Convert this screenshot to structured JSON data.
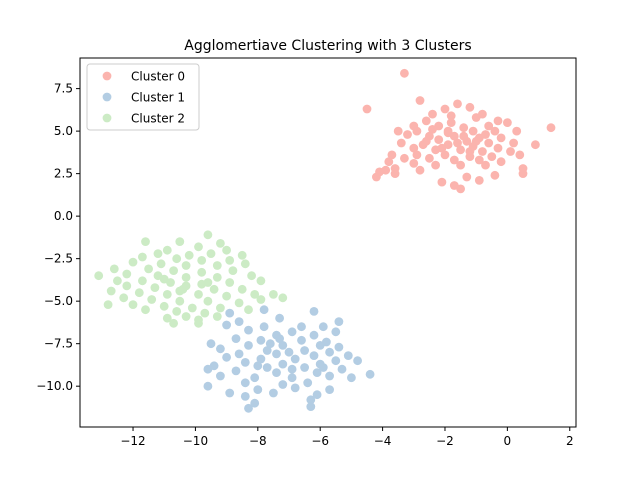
{
  "chart_data": {
    "type": "scatter",
    "title": "Agglomertiave Clustering with 3 Clusters",
    "xlabel": "",
    "ylabel": "",
    "xlim": [
      -13.7,
      2.2
    ],
    "ylim": [
      -12.4,
      9.3
    ],
    "xticks": [
      -12,
      -10,
      -8,
      -6,
      -4,
      -2,
      0,
      2
    ],
    "xtick_labels": [
      "−12",
      "−10",
      "−8",
      "−6",
      "−4",
      "−2",
      "0",
      "2"
    ],
    "yticks": [
      -10.0,
      -7.5,
      -5.0,
      -2.5,
      0.0,
      2.5,
      5.0,
      7.5
    ],
    "ytick_labels": [
      "−10.0",
      "−7.5",
      "−5.0",
      "−2.5",
      "0.0",
      "2.5",
      "5.0",
      "7.5"
    ],
    "grid": false,
    "legend_position": "upper-left",
    "series": [
      {
        "name": "Cluster 0",
        "color": "#fbb4ae",
        "points": [
          [
            -3.3,
            8.4
          ],
          [
            -2.8,
            6.8
          ],
          [
            -1.6,
            6.6
          ],
          [
            -1.2,
            6.4
          ],
          [
            -4.5,
            6.3
          ],
          [
            -2.0,
            6.3
          ],
          [
            -0.8,
            6.0
          ],
          [
            -2.4,
            6.0
          ],
          [
            -1.8,
            5.9
          ],
          [
            -1.0,
            5.8
          ],
          [
            -0.3,
            5.6
          ],
          [
            0.0,
            5.5
          ],
          [
            -2.6,
            5.6
          ],
          [
            -3.0,
            5.3
          ],
          [
            -2.2,
            5.3
          ],
          [
            -1.4,
            5.2
          ],
          [
            -0.6,
            5.3
          ],
          [
            1.4,
            5.2
          ],
          [
            -3.5,
            5.0
          ],
          [
            -2.9,
            5.0
          ],
          [
            -1.9,
            5.0
          ],
          [
            -1.1,
            5.0
          ],
          [
            -0.4,
            5.0
          ],
          [
            0.3,
            5.0
          ],
          [
            -3.2,
            4.8
          ],
          [
            -2.5,
            4.7
          ],
          [
            -1.7,
            4.7
          ],
          [
            -0.9,
            4.6
          ],
          [
            -0.2,
            4.6
          ],
          [
            -2.2,
            4.5
          ],
          [
            -1.3,
            4.4
          ],
          [
            -0.6,
            4.3
          ],
          [
            0.2,
            4.3
          ],
          [
            -3.4,
            4.3
          ],
          [
            -2.7,
            4.2
          ],
          [
            -1.9,
            4.2
          ],
          [
            -1.1,
            4.1
          ],
          [
            -0.3,
            4.0
          ],
          [
            0.9,
            4.2
          ],
          [
            -3.0,
            4.0
          ],
          [
            -2.3,
            3.9
          ],
          [
            -1.5,
            3.9
          ],
          [
            -0.8,
            3.8
          ],
          [
            0.1,
            3.8
          ],
          [
            -3.7,
            3.6
          ],
          [
            -2.9,
            3.6
          ],
          [
            -2.0,
            3.6
          ],
          [
            -1.2,
            3.5
          ],
          [
            -0.5,
            3.5
          ],
          [
            0.4,
            3.6
          ],
          [
            -3.3,
            3.4
          ],
          [
            -2.5,
            3.4
          ],
          [
            -1.7,
            3.3
          ],
          [
            -0.9,
            3.3
          ],
          [
            -0.2,
            3.2
          ],
          [
            -3.8,
            3.2
          ],
          [
            -3.0,
            3.1
          ],
          [
            -2.3,
            3.0
          ],
          [
            -1.5,
            3.0
          ],
          [
            -0.7,
            3.0
          ],
          [
            0.5,
            2.8
          ],
          [
            -3.6,
            2.8
          ],
          [
            -3.9,
            2.7
          ],
          [
            -2.8,
            2.7
          ],
          [
            -4.1,
            2.6
          ],
          [
            0.5,
            2.5
          ],
          [
            -3.6,
            2.5
          ],
          [
            -4.2,
            2.3
          ],
          [
            -1.3,
            2.3
          ],
          [
            -2.1,
            2.0
          ],
          [
            -0.4,
            2.4
          ],
          [
            -1.7,
            1.8
          ],
          [
            -0.9,
            2.1
          ],
          [
            -1.5,
            1.6
          ],
          [
            -1.9,
            4.9
          ],
          [
            -1.4,
            4.7
          ],
          [
            -1.6,
            4.3
          ],
          [
            -2.1,
            4.0
          ],
          [
            -1.0,
            4.4
          ],
          [
            -1.8,
            5.5
          ],
          [
            -2.4,
            5.1
          ],
          [
            -1.2,
            3.8
          ],
          [
            -2.6,
            4.4
          ],
          [
            -0.7,
            4.8
          ]
        ]
      },
      {
        "name": "Cluster 1",
        "color": "#b3cde3",
        "points": [
          [
            -7.8,
            -5.5
          ],
          [
            -6.2,
            -5.6
          ],
          [
            -8.9,
            -5.7
          ],
          [
            -5.4,
            -6.2
          ],
          [
            -8.6,
            -6.2
          ],
          [
            -7.3,
            -6.0
          ],
          [
            -6.6,
            -6.5
          ],
          [
            -5.9,
            -6.5
          ],
          [
            -7.8,
            -6.5
          ],
          [
            -9.0,
            -6.4
          ],
          [
            -8.3,
            -6.7
          ],
          [
            -6.9,
            -6.8
          ],
          [
            -5.5,
            -6.8
          ],
          [
            -7.4,
            -7.0
          ],
          [
            -6.2,
            -7.0
          ],
          [
            -8.7,
            -7.2
          ],
          [
            -7.9,
            -7.3
          ],
          [
            -6.6,
            -7.3
          ],
          [
            -5.8,
            -7.4
          ],
          [
            -9.5,
            -7.5
          ],
          [
            -8.3,
            -7.6
          ],
          [
            -7.2,
            -7.6
          ],
          [
            -6.0,
            -7.6
          ],
          [
            -5.4,
            -7.7
          ],
          [
            -9.2,
            -7.8
          ],
          [
            -7.7,
            -7.9
          ],
          [
            -6.5,
            -7.9
          ],
          [
            -5.7,
            -8.0
          ],
          [
            -8.6,
            -8.1
          ],
          [
            -7.4,
            -8.1
          ],
          [
            -6.2,
            -8.2
          ],
          [
            -5.1,
            -8.2
          ],
          [
            -9.0,
            -8.3
          ],
          [
            -7.9,
            -8.4
          ],
          [
            -6.8,
            -8.4
          ],
          [
            -5.5,
            -8.5
          ],
          [
            -8.4,
            -8.6
          ],
          [
            -7.2,
            -8.7
          ],
          [
            -6.0,
            -8.7
          ],
          [
            -4.8,
            -8.5
          ],
          [
            -9.4,
            -8.8
          ],
          [
            -7.7,
            -8.9
          ],
          [
            -6.5,
            -8.9
          ],
          [
            -5.3,
            -9.0
          ],
          [
            -8.7,
            -9.1
          ],
          [
            -7.4,
            -9.2
          ],
          [
            -6.1,
            -9.2
          ],
          [
            -5.7,
            -9.4
          ],
          [
            -9.2,
            -9.4
          ],
          [
            -8.1,
            -9.5
          ],
          [
            -6.9,
            -9.5
          ],
          [
            -5.0,
            -9.5
          ],
          [
            -4.4,
            -9.3
          ],
          [
            -9.6,
            -9.0
          ],
          [
            -8.4,
            -9.8
          ],
          [
            -7.2,
            -9.9
          ],
          [
            -6.4,
            -9.8
          ],
          [
            -9.6,
            -10.0
          ],
          [
            -8.0,
            -10.2
          ],
          [
            -6.8,
            -10.1
          ],
          [
            -5.7,
            -10.2
          ],
          [
            -8.9,
            -10.4
          ],
          [
            -7.5,
            -10.4
          ],
          [
            -6.1,
            -10.5
          ],
          [
            -8.4,
            -10.6
          ],
          [
            -6.3,
            -10.8
          ],
          [
            -8.1,
            -11.0
          ],
          [
            -6.3,
            -11.2
          ],
          [
            -8.3,
            -11.3
          ],
          [
            -7.0,
            -8.0
          ],
          [
            -7.6,
            -7.5
          ],
          [
            -6.9,
            -9.0
          ],
          [
            -8.0,
            -8.8
          ],
          [
            -5.9,
            -8.9
          ],
          [
            -7.3,
            -7.2
          ]
        ]
      },
      {
        "name": "Cluster 2",
        "color": "#ccebc5",
        "points": [
          [
            -9.6,
            -1.1
          ],
          [
            -10.5,
            -1.5
          ],
          [
            -9.2,
            -1.6
          ],
          [
            -11.6,
            -1.5
          ],
          [
            -9.9,
            -1.8
          ],
          [
            -10.9,
            -2.0
          ],
          [
            -9.0,
            -2.0
          ],
          [
            -11.2,
            -2.2
          ],
          [
            -10.2,
            -2.3
          ],
          [
            -9.5,
            -2.2
          ],
          [
            -8.5,
            -2.3
          ],
          [
            -11.7,
            -2.4
          ],
          [
            -10.6,
            -2.5
          ],
          [
            -9.8,
            -2.6
          ],
          [
            -8.9,
            -2.6
          ],
          [
            -12.0,
            -2.7
          ],
          [
            -11.1,
            -2.8
          ],
          [
            -10.3,
            -2.9
          ],
          [
            -9.3,
            -2.9
          ],
          [
            -8.4,
            -2.8
          ],
          [
            -12.6,
            -3.1
          ],
          [
            -11.5,
            -3.1
          ],
          [
            -10.7,
            -3.2
          ],
          [
            -9.8,
            -3.3
          ],
          [
            -8.8,
            -3.2
          ],
          [
            -13.1,
            -3.5
          ],
          [
            -12.2,
            -3.4
          ],
          [
            -11.2,
            -3.5
          ],
          [
            -10.3,
            -3.6
          ],
          [
            -9.3,
            -3.6
          ],
          [
            -8.2,
            -3.5
          ],
          [
            -12.5,
            -3.8
          ],
          [
            -11.7,
            -3.8
          ],
          [
            -10.8,
            -3.9
          ],
          [
            -9.8,
            -4.0
          ],
          [
            -8.9,
            -3.9
          ],
          [
            -7.9,
            -3.8
          ],
          [
            -12.2,
            -4.1
          ],
          [
            -11.3,
            -4.2
          ],
          [
            -10.4,
            -4.3
          ],
          [
            -9.4,
            -4.3
          ],
          [
            -8.5,
            -4.3
          ],
          [
            -12.7,
            -4.4
          ],
          [
            -11.8,
            -4.5
          ],
          [
            -10.9,
            -4.6
          ],
          [
            -9.9,
            -4.6
          ],
          [
            -9.0,
            -4.7
          ],
          [
            -8.1,
            -4.6
          ],
          [
            -7.5,
            -4.6
          ],
          [
            -12.3,
            -4.8
          ],
          [
            -11.4,
            -4.9
          ],
          [
            -10.5,
            -5.0
          ],
          [
            -9.6,
            -5.0
          ],
          [
            -8.6,
            -5.1
          ],
          [
            -12.0,
            -5.2
          ],
          [
            -12.8,
            -5.2
          ],
          [
            -11.0,
            -5.3
          ],
          [
            -10.1,
            -5.4
          ],
          [
            -9.2,
            -5.4
          ],
          [
            -11.6,
            -5.5
          ],
          [
            -10.6,
            -5.6
          ],
          [
            -9.7,
            -5.7
          ],
          [
            -8.3,
            -5.5
          ],
          [
            -7.9,
            -4.9
          ],
          [
            -7.2,
            -4.8
          ],
          [
            -10.3,
            -5.9
          ],
          [
            -9.3,
            -5.9
          ],
          [
            -10.9,
            -6.0
          ],
          [
            -9.9,
            -6.1
          ],
          [
            -10.7,
            -6.3
          ],
          [
            -9.9,
            -6.3
          ],
          [
            -10.3,
            -4.1
          ],
          [
            -11.0,
            -3.7
          ],
          [
            -9.6,
            -3.9
          ],
          [
            -10.5,
            -4.4
          ]
        ]
      }
    ]
  }
}
